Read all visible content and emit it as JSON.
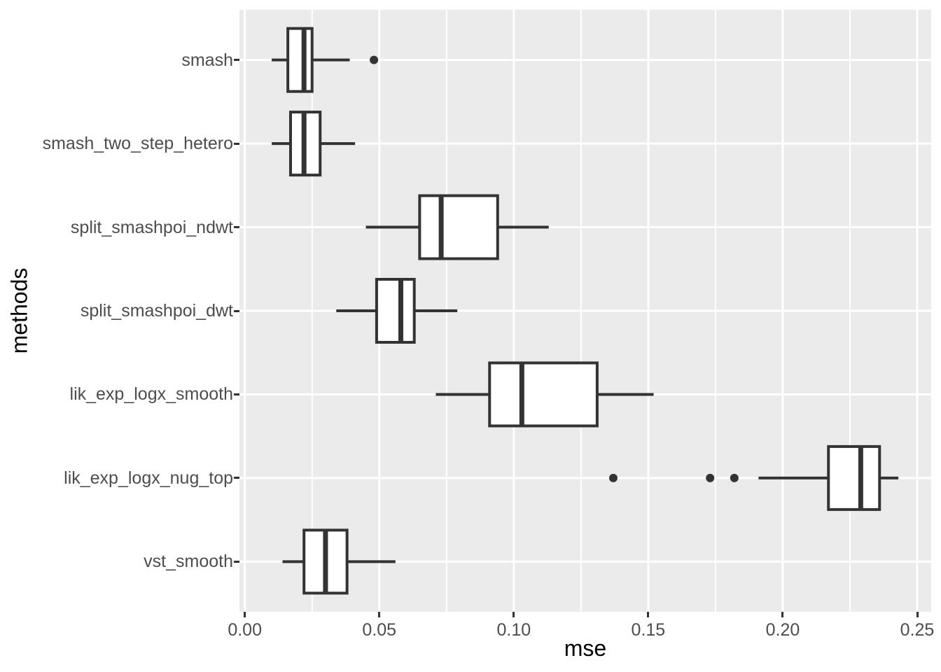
{
  "colors": {
    "panel_background": "#EBEBEB",
    "grid_line": "#FFFFFF",
    "box_stroke": "#333333",
    "box_fill": "#FFFFFF",
    "median_stroke": "#333333",
    "outlier_fill": "#333333",
    "tick_mark": "#333333",
    "tick_label": "#4D4D4D",
    "axis_title": "#000000"
  },
  "chart_data": {
    "type": "boxplot",
    "orientation": "horizontal",
    "title": "",
    "xlabel": "mse",
    "ylabel": "methods",
    "xlim": [
      -0.002,
      0.2552
    ],
    "x_ticks": [
      0.0,
      0.05,
      0.1,
      0.15,
      0.2,
      0.25
    ],
    "x_tick_labels": [
      "0.00",
      "0.05",
      "0.10",
      "0.15",
      "0.20",
      "0.25"
    ],
    "x_minor_ticks": [
      0.025,
      0.075,
      0.125,
      0.175,
      0.225
    ],
    "grid": true,
    "legend": "none",
    "categories": [
      "smash",
      "smash_two_step_hetero",
      "split_smashpoi_ndwt",
      "split_smashpoi_dwt",
      "lik_exp_logx_smooth",
      "lik_exp_logx_nug_top",
      "vst_smooth"
    ],
    "boxes": [
      {
        "method": "smash",
        "whisker_low": 0.01,
        "q1": 0.016,
        "median": 0.022,
        "q3": 0.025,
        "whisker_high": 0.039,
        "outliers": [
          0.048
        ]
      },
      {
        "method": "smash_two_step_hetero",
        "whisker_low": 0.01,
        "q1": 0.017,
        "median": 0.022,
        "q3": 0.028,
        "whisker_high": 0.041,
        "outliers": []
      },
      {
        "method": "split_smashpoi_ndwt",
        "whisker_low": 0.045,
        "q1": 0.065,
        "median": 0.073,
        "q3": 0.094,
        "whisker_high": 0.113,
        "outliers": []
      },
      {
        "method": "split_smashpoi_dwt",
        "whisker_low": 0.034,
        "q1": 0.049,
        "median": 0.058,
        "q3": 0.063,
        "whisker_high": 0.079,
        "outliers": []
      },
      {
        "method": "lik_exp_logx_smooth",
        "whisker_low": 0.071,
        "q1": 0.091,
        "median": 0.103,
        "q3": 0.131,
        "whisker_high": 0.152,
        "outliers": []
      },
      {
        "method": "lik_exp_logx_nug_top",
        "whisker_low": 0.191,
        "q1": 0.217,
        "median": 0.229,
        "q3": 0.236,
        "whisker_high": 0.243,
        "outliers": [
          0.137,
          0.173,
          0.182
        ]
      },
      {
        "method": "vst_smooth",
        "whisker_low": 0.014,
        "q1": 0.022,
        "median": 0.03,
        "q3": 0.038,
        "whisker_high": 0.056,
        "outliers": []
      }
    ]
  }
}
